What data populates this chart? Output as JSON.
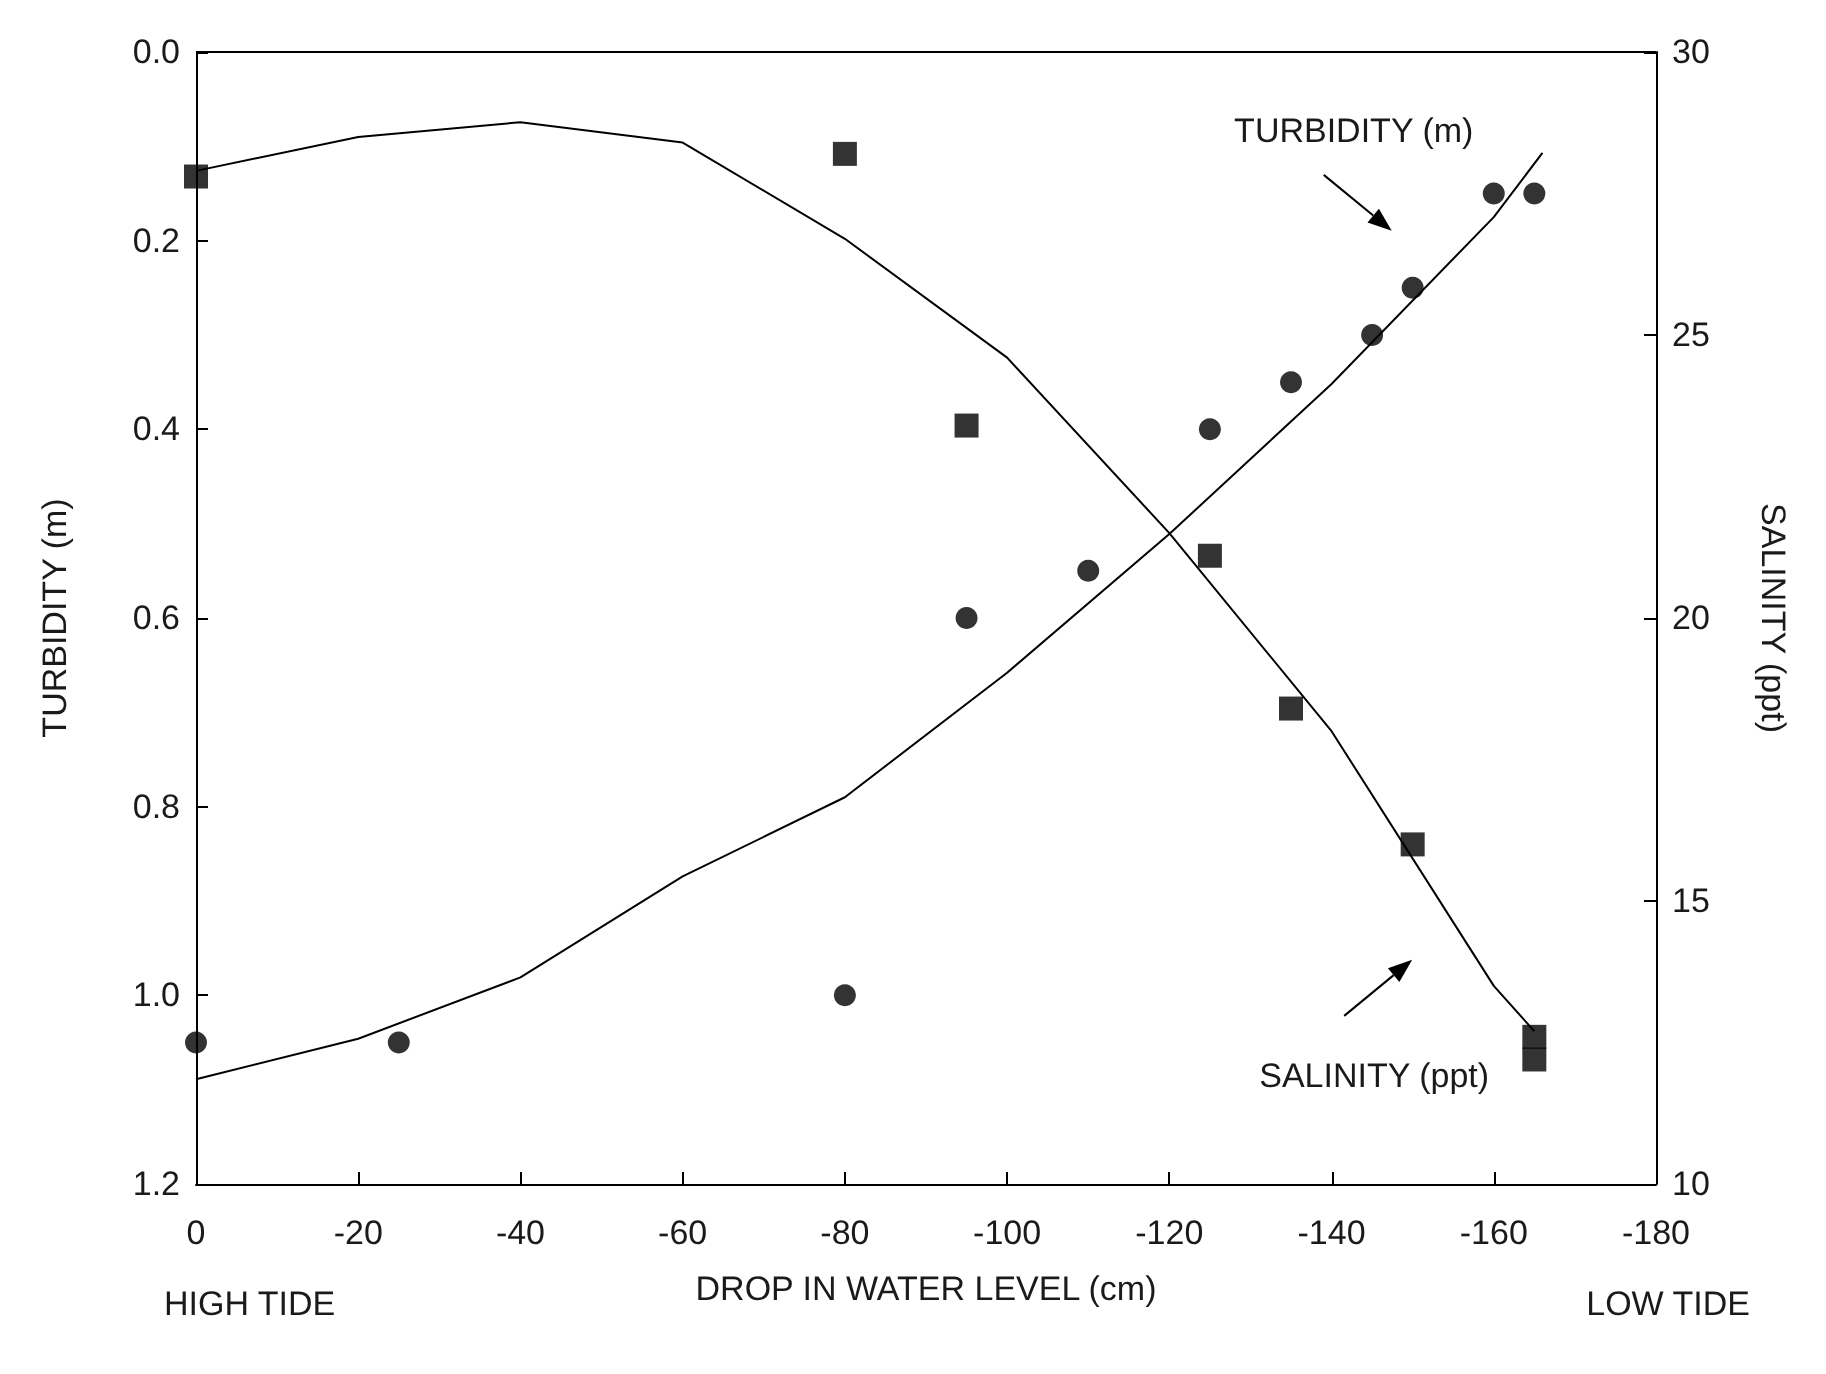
{
  "chart_data": {
    "type": "scatter",
    "xlabel": "DROP IN WATER LEVEL (cm)",
    "ylabel": "TURBIDITY (m)",
    "y2label": "SALINITY (ppt)",
    "xlim": [
      0,
      -180
    ],
    "xticks": [
      0,
      -20,
      -40,
      -60,
      -80,
      -100,
      -120,
      -140,
      -160,
      -180
    ],
    "ylim": [
      1.2,
      0
    ],
    "yticks": [
      {
        "value": 0,
        "label": "0.0"
      },
      0.2,
      0.4,
      0.6,
      0.8,
      {
        "value": 1,
        "label": "1.0"
      },
      1.2
    ],
    "y2lim": [
      10,
      30
    ],
    "y2ticks": [
      10,
      15,
      20,
      25,
      30
    ],
    "series": [
      {
        "marker": "circle",
        "color": "#000000",
        "x": [
          0,
          -25,
          -80,
          -95,
          -110,
          -125,
          -135,
          -145,
          -150,
          -160,
          -165
        ],
        "values": [
          1.05,
          1.05,
          1.0,
          0.6,
          0.55,
          0.4,
          0.35,
          0.3,
          0.25,
          0.15,
          0.15
        ]
      },
      {
        "type": "line",
        "marker": "none",
        "color": "#000000",
        "x": [
          0,
          -20,
          -40,
          -60,
          -80,
          -100,
          -120,
          -140,
          -160,
          -166
        ],
        "values": [
          1.089,
          1.046,
          0.981,
          0.874,
          0.79,
          0.658,
          0.511,
          0.352,
          0.175,
          0.107
        ]
      },
      {
        "marker": "square",
        "axis": "y2",
        "color": "#000000",
        "x": [
          0,
          -80,
          -95,
          -125,
          -135,
          -150,
          -165,
          -165
        ],
        "values": [
          27.8,
          28.2,
          23.4,
          21.1,
          18.4,
          16.0,
          12.6,
          12.2
        ]
      },
      {
        "type": "line",
        "marker": "none",
        "axis": "y2",
        "color": "#000000",
        "x": [
          0,
          -20,
          -40,
          -60,
          -80,
          -100,
          -120,
          -140,
          -160,
          -165
        ],
        "values": [
          27.9,
          28.5,
          28.76,
          28.4,
          26.7,
          24.6,
          21.5,
          18.0,
          13.5,
          12.7
        ]
      }
    ],
    "annotations": [
      "TURBIDITY (m)",
      "SALINITY (ppt)",
      "HIGH TIDE",
      "LOW TIDE"
    ],
    "grid": false
  }
}
